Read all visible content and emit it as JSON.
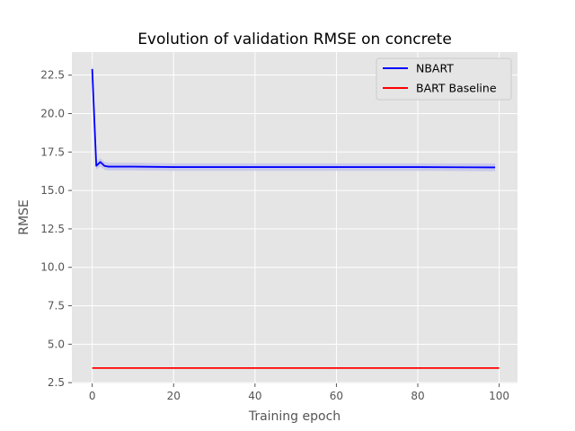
{
  "chart_data": {
    "type": "line",
    "title": "Evolution of validation RMSE on concrete",
    "xlabel": "Training epoch",
    "ylabel": "RMSE",
    "xlim": [
      -5,
      104.5
    ],
    "ylim": [
      2.45,
      24.0
    ],
    "x_ticks": [
      0,
      20,
      40,
      60,
      80,
      100
    ],
    "x_tick_labels": [
      "0",
      "20",
      "40",
      "60",
      "80",
      "100"
    ],
    "y_ticks": [
      2.5,
      5.0,
      7.5,
      10.0,
      12.5,
      15.0,
      17.5,
      20.0,
      22.5
    ],
    "y_tick_labels": [
      "2.5",
      "5.0",
      "7.5",
      "10.0",
      "12.5",
      "15.0",
      "17.5",
      "20.0",
      "22.5"
    ],
    "grid": true,
    "background": "#e5e5e5",
    "legend_position": "top-right",
    "series": [
      {
        "name": "NBART",
        "color": "#0000ff",
        "band_color": "#c5c5ea",
        "x": [
          0,
          1,
          2,
          3,
          4,
          5,
          10,
          20,
          40,
          60,
          80,
          99
        ],
        "y": [
          22.9,
          16.6,
          16.85,
          16.6,
          16.55,
          16.55,
          16.55,
          16.52,
          16.52,
          16.52,
          16.52,
          16.5
        ],
        "band_low": [
          22.3,
          16.35,
          16.55,
          16.35,
          16.3,
          16.3,
          16.3,
          16.28,
          16.28,
          16.28,
          16.28,
          16.25
        ],
        "band_high": [
          23.5,
          16.85,
          17.1,
          16.85,
          16.8,
          16.8,
          16.8,
          16.76,
          16.76,
          16.76,
          16.76,
          16.75
        ]
      },
      {
        "name": "BART Baseline",
        "color": "#ff0000",
        "x": [
          0,
          100
        ],
        "y": [
          3.45,
          3.45
        ]
      }
    ]
  }
}
